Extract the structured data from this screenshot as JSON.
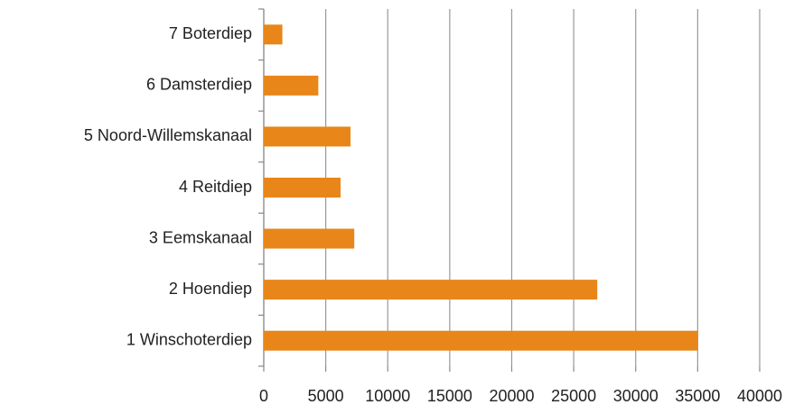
{
  "chart_data": {
    "type": "hbar",
    "categories": [
      "1 Winschoterdiep",
      "2 Hoendiep",
      "3 Eemskanaal",
      "4 Reitdiep",
      "5 Noord-Willemskanaal",
      "6 Damsterdiep",
      "7 Boterdiep"
    ],
    "values": [
      35000,
      26900,
      7300,
      6200,
      7000,
      4400,
      1500
    ],
    "color": "#e8861a",
    "xlim": [
      0,
      40000
    ],
    "xticks": [
      0,
      5000,
      10000,
      15000,
      20000,
      25000,
      30000,
      35000,
      40000
    ],
    "grid": true
  }
}
